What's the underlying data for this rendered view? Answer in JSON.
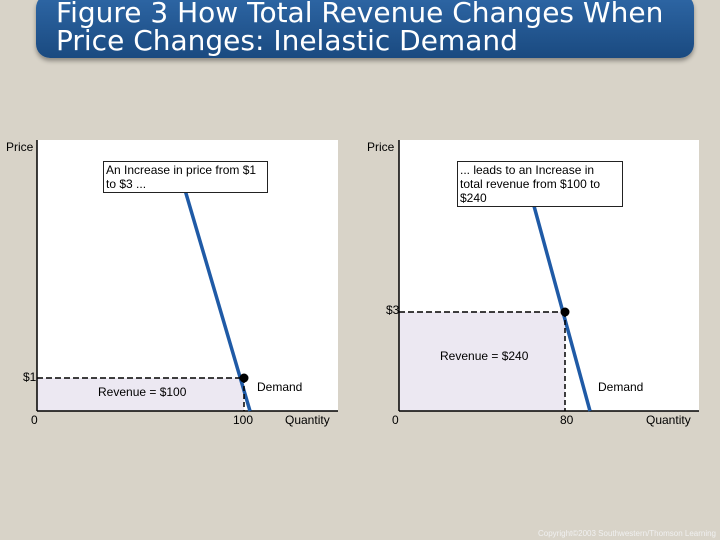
{
  "title": {
    "line1": "Figure 3 How Total Revenue Changes When",
    "line2": "Price Changes: Inelastic Demand"
  },
  "colors": {
    "demand_line": "#1f5aa6",
    "revenue_fill": "#ece8f2",
    "background": "#d8d3c8",
    "title_bar": "#24568f"
  },
  "copyright": "Copyright©2003 Southwestern/Thomson Learning",
  "chart_data": [
    {
      "type": "line",
      "ylabel": "Price",
      "xlabel": "Quantity",
      "origin_label": "0",
      "callout": "An Increase in price from $1 to $3 ...",
      "price_label": "$1",
      "quantity_label": "100",
      "revenue_label": "Revenue =  $100",
      "demand_label": "Demand",
      "point": {
        "quantity": 100,
        "price": 1
      },
      "revenue": 100
    },
    {
      "type": "line",
      "ylabel": "Price",
      "xlabel": "Quantity",
      "origin_label": "0",
      "callout": "... leads to an Increase in total revenue from $100 to $240",
      "price_label": "$3",
      "quantity_label": "80",
      "revenue_label": "Revenue = $240",
      "demand_label": "Demand",
      "point": {
        "quantity": 80,
        "price": 3
      },
      "revenue": 240
    }
  ]
}
